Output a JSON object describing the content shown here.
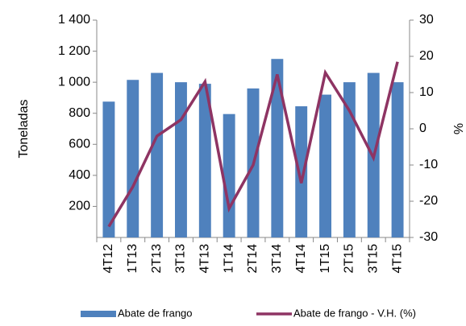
{
  "chart_data": {
    "type": "bar_line",
    "categories": [
      "4T12",
      "1T13",
      "2T13",
      "3T13",
      "4T13",
      "1T14",
      "2T14",
      "3T14",
      "4T14",
      "1T15",
      "2T15",
      "3T15",
      "4T15"
    ],
    "ylabel": "Toneladas",
    "y2label": "%",
    "ylim": [
      0,
      1400
    ],
    "yticks": [
      200,
      400,
      600,
      800,
      {
        "value": 1000,
        "label": "1 000"
      },
      {
        "value": 1200,
        "label": "1 200"
      },
      {
        "value": 1400,
        "label": "1 400"
      }
    ],
    "y2lim": [
      -30,
      30
    ],
    "y2ticks": [
      -30,
      -20,
      -10,
      0,
      10,
      20,
      30
    ],
    "series": [
      {
        "name": "Abate de frango",
        "type": "bar",
        "color": "#4f81bd",
        "values": [
          875,
          1015,
          1060,
          1000,
          990,
          795,
          960,
          1150,
          845,
          920,
          1000,
          1060,
          1000
        ]
      },
      {
        "name": "Abate de frango - V.H. (%)",
        "type": "line",
        "axis": "y2",
        "color": "#8e3463",
        "values": [
          -27,
          -16,
          -2,
          2.5,
          13,
          -22,
          -10,
          15,
          -15,
          15.5,
          5,
          -8,
          18.5
        ]
      }
    ]
  }
}
